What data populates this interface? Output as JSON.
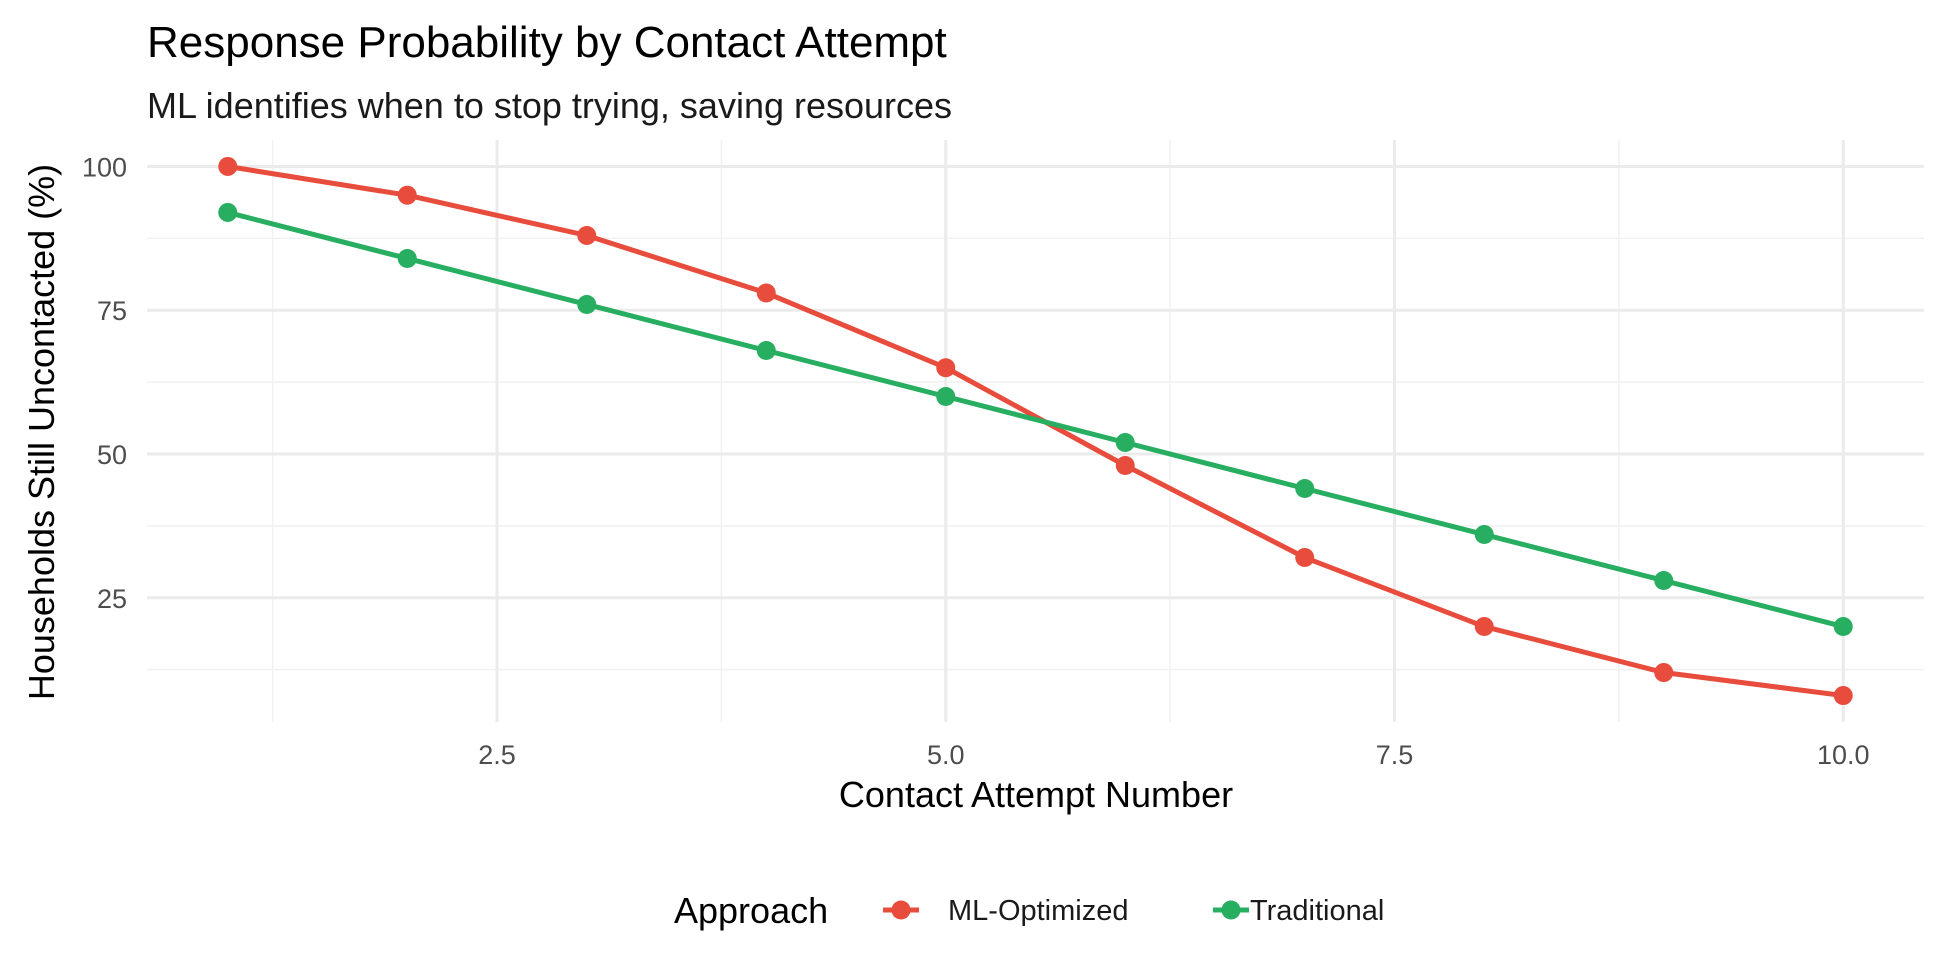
{
  "chart_data": {
    "type": "line",
    "title": "Response Probability by Contact Attempt",
    "subtitle": "ML identifies when to stop trying, saving resources",
    "xlabel": "Contact Attempt Number",
    "ylabel": "Households Still Uncontacted (%)",
    "xlim": [
      0.55,
      10.45
    ],
    "ylim": [
      3.4,
      104.6
    ],
    "x_ticks": [
      2.5,
      5.0,
      7.5,
      10.0
    ],
    "x_tick_labels": [
      "2.5",
      "5.0",
      "7.5",
      "10.0"
    ],
    "x_minor_ticks": [
      1.25,
      3.75,
      6.25,
      8.75
    ],
    "y_ticks": [
      25,
      50,
      75,
      100
    ],
    "y_tick_labels": [
      "25",
      "50",
      "75",
      "100"
    ],
    "y_minor_ticks": [
      12.5,
      37.5,
      62.5,
      87.5
    ],
    "grid": true,
    "legend_title": "Approach",
    "legend_position": "bottom",
    "x": [
      1,
      2,
      3,
      4,
      5,
      6,
      7,
      8,
      9,
      10
    ],
    "series": [
      {
        "name": "ML-Optimized",
        "color": "#E74C3C",
        "values": [
          100,
          95,
          88,
          78,
          65,
          48,
          32,
          20,
          12,
          8
        ]
      },
      {
        "name": "Traditional",
        "color": "#27AE60",
        "values": [
          92,
          84,
          76,
          68,
          60,
          52,
          44,
          36,
          28,
          20
        ]
      }
    ]
  }
}
